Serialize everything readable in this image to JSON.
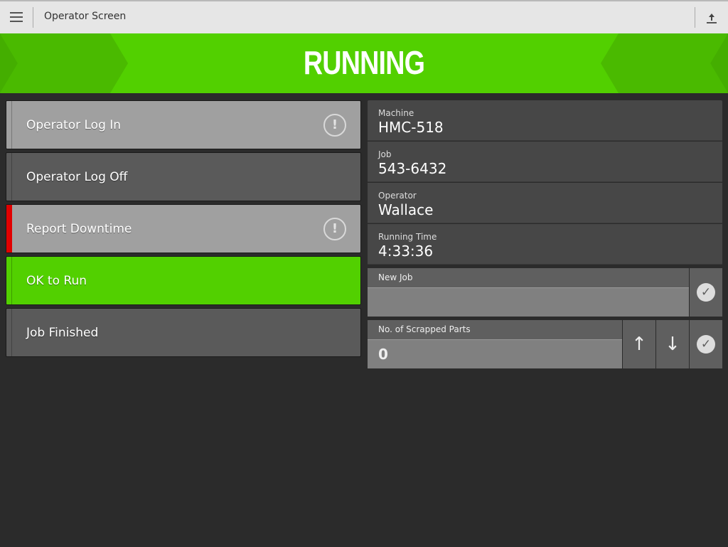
{
  "header": {
    "title": "Operator Screen",
    "menu_icon": "hamburger-icon",
    "upload_icon": "upload-icon"
  },
  "banner": {
    "status": "RUNNING",
    "color": "#52d000"
  },
  "actions": [
    {
      "label": "Operator Log In",
      "warning": true,
      "bg": "#a0a0a0"
    },
    {
      "label": "Operator Log Off",
      "warning": false,
      "bg": "#5a5a5a"
    },
    {
      "label": "Report Downtime",
      "warning": true,
      "bg": "#a0a0a0",
      "marker": "#e00000"
    },
    {
      "label": "OK to Run",
      "warning": false,
      "bg": "#52d000"
    },
    {
      "label": "Job Finished",
      "warning": false,
      "bg": "#5a5a5a"
    }
  ],
  "info": [
    {
      "label": "Machine",
      "value": "HMC-518"
    },
    {
      "label": "Job",
      "value": "543-6432"
    },
    {
      "label": "Operator",
      "value": "Wallace"
    },
    {
      "label": "Running Time",
      "value": "4:33:36"
    }
  ],
  "new_job": {
    "label": "New Job",
    "value": ""
  },
  "scrapped": {
    "label": "No. of Scrapped Parts",
    "value": "0"
  },
  "icons": {
    "warning": "!",
    "check": "✓",
    "up": "↑",
    "down": "↓"
  }
}
